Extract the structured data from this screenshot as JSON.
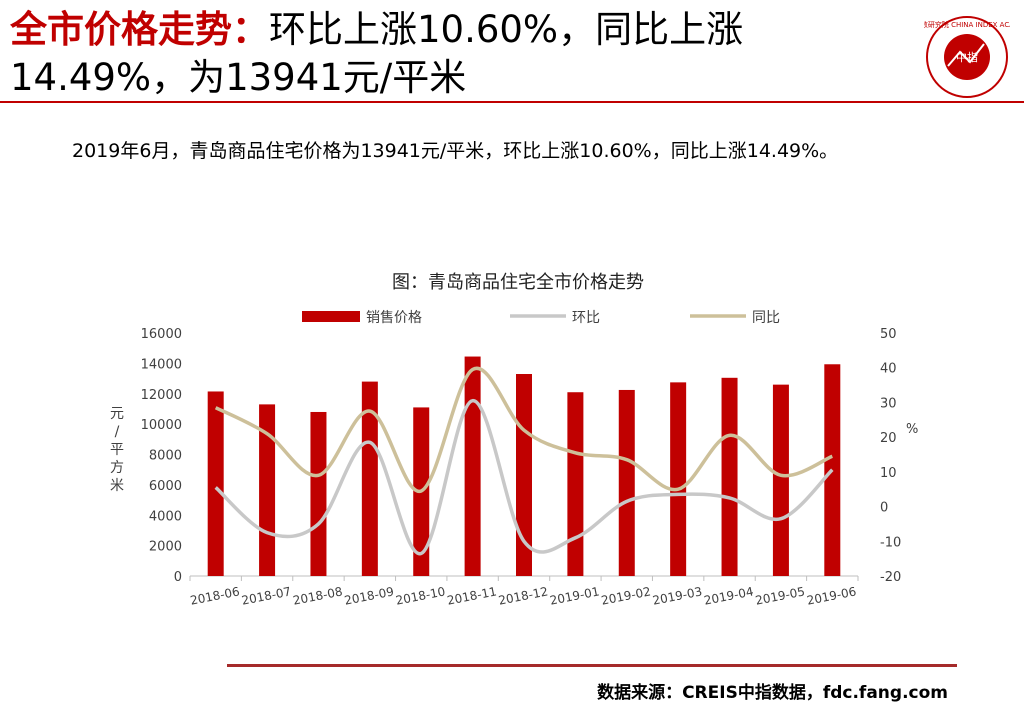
{
  "header": {
    "title_highlight": "全市价格走势：",
    "title_rest": "环比上涨10.60%，同比上涨14.49%，为13941元/平米"
  },
  "summary": "2019年6月，青岛商品住宅价格为13941元/平米，环比上涨10.60%，同比上涨14.49%。",
  "logo": {
    "ring_text": "中国指数研究院 CHINA INDEX ACADEMY",
    "center_text": "中指",
    "color": "#c00000"
  },
  "source": "数据来源：CREIS中指数据，fdc.fang.com",
  "colors": {
    "bar": "#c00000",
    "hb": "#c8c8c8",
    "tb": "#cdc09a",
    "accent": "#c00000"
  },
  "chart_data": {
    "type": "bar",
    "title": "图：青岛商品住宅全市价格走势",
    "categories": [
      "2018-06",
      "2018-07",
      "2018-08",
      "2018-09",
      "2018-10",
      "2018-11",
      "2018-12",
      "2019-01",
      "2019-02",
      "2019-03",
      "2019-04",
      "2019-05",
      "2019-06"
    ],
    "series": [
      {
        "name": "销售价格",
        "kind": "bar",
        "axis": "left",
        "values": [
          12150,
          11300,
          10800,
          12800,
          11100,
          14450,
          13300,
          12100,
          12250,
          12750,
          13050,
          12600,
          13941
        ]
      },
      {
        "name": "环比",
        "kind": "line",
        "axis": "right",
        "values": [
          5.5,
          -7.5,
          -5.0,
          18.5,
          -13.5,
          30.5,
          -10.0,
          -9.0,
          1.5,
          3.5,
          2.5,
          -3.5,
          10.6
        ]
      },
      {
        "name": "同比",
        "kind": "line",
        "axis": "right",
        "values": [
          28.5,
          21.0,
          9.0,
          27.5,
          4.5,
          39.5,
          22.0,
          15.5,
          13.5,
          5.0,
          20.5,
          9.0,
          14.49
        ]
      }
    ],
    "ylabel_left": "元/平方米",
    "ylabel_right": "%",
    "ylim_left": [
      0,
      16000
    ],
    "ylim_right": [
      -20,
      50
    ],
    "yticks_left": [
      "0",
      "2000",
      "4000",
      "6000",
      "8000",
      "10000",
      "12000",
      "14000",
      "16000"
    ],
    "yticks_right": [
      "-20",
      "-10",
      "0",
      "10",
      "20",
      "30",
      "40",
      "50"
    ],
    "legend_position": "top",
    "grid": false
  }
}
